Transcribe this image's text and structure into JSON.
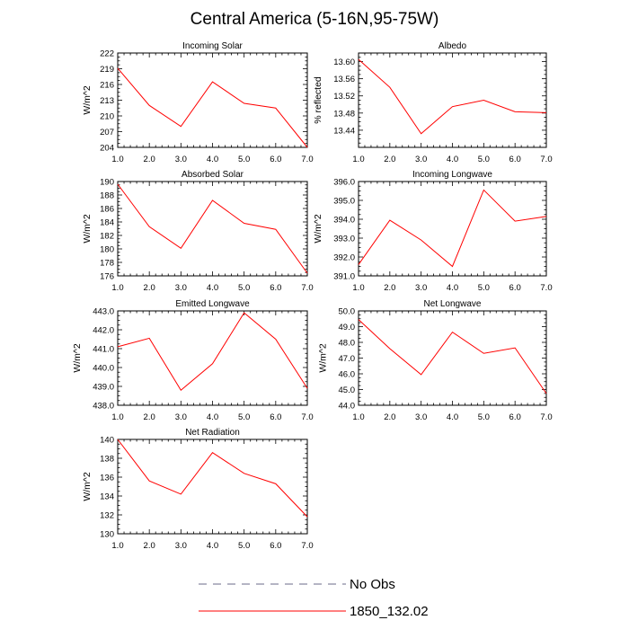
{
  "title": "Central America (5-16N,95-75W)",
  "colors": {
    "model_line": "#ff0000",
    "obs_line": "#6b6b8a",
    "axes": "#000000"
  },
  "legend": [
    {
      "label": "No Obs",
      "style": "dashed",
      "color": "#6b6b8a"
    },
    {
      "label": "1850_132.02",
      "style": "solid",
      "color": "#ff0000"
    }
  ],
  "chart_data": [
    {
      "type": "line",
      "title": "Incoming Solar",
      "ylabel": "W/m^2",
      "xlim": [
        1,
        7
      ],
      "xticks": [
        "1.0",
        "2.0",
        "3.0",
        "4.0",
        "5.0",
        "6.0",
        "7.0"
      ],
      "ylim": [
        204,
        222
      ],
      "yticks": [
        "204",
        "207",
        "210",
        "213",
        "216",
        "219",
        "222"
      ],
      "series": [
        {
          "name": "1850_132.02",
          "x": [
            1,
            2,
            3,
            4,
            5,
            6,
            7
          ],
          "values": [
            219.1,
            212.0,
            208.0,
            216.5,
            212.4,
            211.5,
            204.0
          ]
        }
      ]
    },
    {
      "type": "line",
      "title": "Albedo",
      "ylabel": "% reflected",
      "xlim": [
        1,
        7
      ],
      "xticks": [
        "1.0",
        "2.0",
        "3.0",
        "4.0",
        "5.0",
        "6.0",
        "7.0"
      ],
      "ylim": [
        13.4,
        13.62
      ],
      "yticks": [
        "13.44",
        "13.48",
        "13.52",
        "13.56",
        "13.60"
      ],
      "series": [
        {
          "name": "1850_132.02",
          "x": [
            1,
            2,
            3,
            4,
            5,
            6,
            7
          ],
          "values": [
            13.605,
            13.54,
            13.432,
            13.495,
            13.51,
            13.483,
            13.481
          ]
        }
      ]
    },
    {
      "type": "line",
      "title": "Absorbed Solar",
      "ylabel": "W/m^2",
      "xlim": [
        1,
        7
      ],
      "xticks": [
        "1.0",
        "2.0",
        "3.0",
        "4.0",
        "5.0",
        "6.0",
        "7.0"
      ],
      "ylim": [
        176,
        190
      ],
      "yticks": [
        "176",
        "178",
        "180",
        "182",
        "184",
        "186",
        "188",
        "190"
      ],
      "series": [
        {
          "name": "1850_132.02",
          "x": [
            1,
            2,
            3,
            4,
            5,
            6,
            7
          ],
          "values": [
            189.6,
            183.3,
            180.1,
            187.2,
            183.8,
            182.9,
            176.4
          ]
        }
      ]
    },
    {
      "type": "line",
      "title": "Incoming Longwave",
      "ylabel": "W/m^2",
      "xlim": [
        1,
        7
      ],
      "xticks": [
        "1.0",
        "2.0",
        "3.0",
        "4.0",
        "5.0",
        "6.0",
        "7.0"
      ],
      "ylim": [
        391,
        396
      ],
      "yticks": [
        "391.0",
        "392.0",
        "393.0",
        "394.0",
        "395.0",
        "396.0"
      ],
      "series": [
        {
          "name": "1850_132.02",
          "x": [
            1,
            2,
            3,
            4,
            5,
            6,
            7
          ],
          "values": [
            391.6,
            393.95,
            392.9,
            391.5,
            395.55,
            393.9,
            394.15
          ]
        }
      ]
    },
    {
      "type": "line",
      "title": "Emitted Longwave",
      "ylabel": "W/m^2",
      "xlim": [
        1,
        7
      ],
      "xticks": [
        "1.0",
        "2.0",
        "3.0",
        "4.0",
        "5.0",
        "6.0",
        "7.0"
      ],
      "ylim": [
        438,
        443
      ],
      "yticks": [
        "438.0",
        "439.0",
        "440.0",
        "441.0",
        "442.0",
        "443.0"
      ],
      "series": [
        {
          "name": "1850_132.02",
          "x": [
            1,
            2,
            3,
            4,
            5,
            6,
            7
          ],
          "values": [
            441.1,
            441.55,
            438.8,
            440.2,
            442.9,
            441.5,
            438.9
          ]
        }
      ]
    },
    {
      "type": "line",
      "title": "Net Longwave",
      "ylabel": "W/m^2",
      "xlim": [
        1,
        7
      ],
      "xticks": [
        "1.0",
        "2.0",
        "3.0",
        "4.0",
        "5.0",
        "6.0",
        "7.0"
      ],
      "ylim": [
        44,
        50
      ],
      "yticks": [
        "44.0",
        "45.0",
        "46.0",
        "47.0",
        "48.0",
        "49.0",
        "50.0"
      ],
      "series": [
        {
          "name": "1850_132.02",
          "x": [
            1,
            2,
            3,
            4,
            5,
            6,
            7
          ],
          "values": [
            49.45,
            47.6,
            45.95,
            48.65,
            47.3,
            47.65,
            44.75
          ]
        }
      ]
    },
    {
      "type": "line",
      "title": "Net Radiation",
      "ylabel": "W/m^2",
      "xlim": [
        1,
        7
      ],
      "xticks": [
        "1.0",
        "2.0",
        "3.0",
        "4.0",
        "5.0",
        "6.0",
        "7.0"
      ],
      "ylim": [
        130,
        140
      ],
      "yticks": [
        "130",
        "132",
        "134",
        "136",
        "138",
        "140"
      ],
      "series": [
        {
          "name": "1850_132.02",
          "x": [
            1,
            2,
            3,
            4,
            5,
            6,
            7
          ],
          "values": [
            140.0,
            135.6,
            134.2,
            138.6,
            136.4,
            135.3,
            131.8
          ]
        }
      ]
    }
  ]
}
